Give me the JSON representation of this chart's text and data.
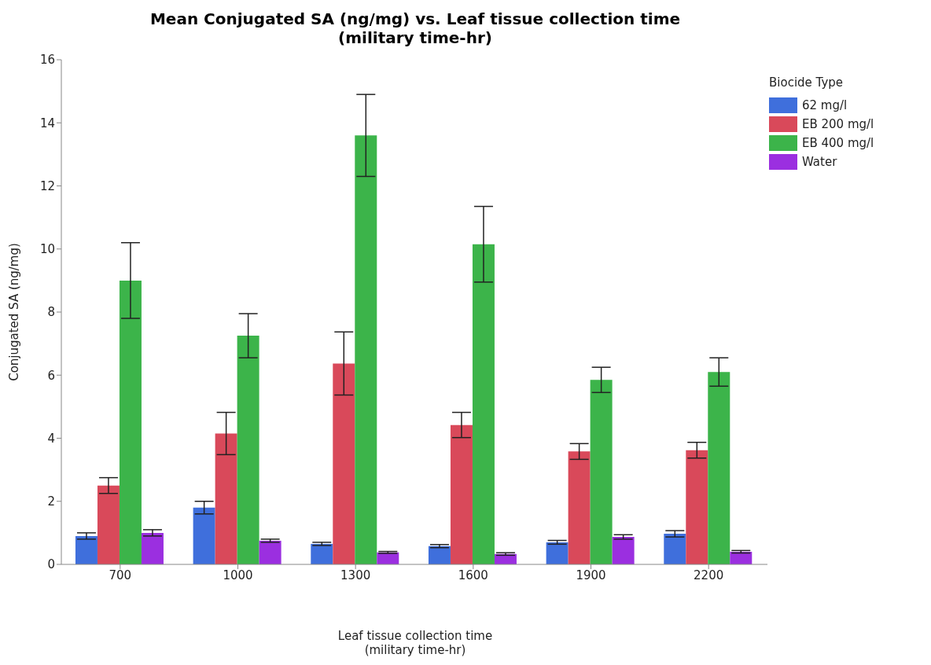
{
  "chart_data": {
    "type": "bar",
    "title": "Mean Conjugated SA (ng/mg) vs. Leaf tissue collection time\n(military time-hr)",
    "xlabel": "Leaf tissue collection time\n(military time-hr)",
    "ylabel": "Conjugated SA (ng/mg)",
    "legend_title": "Biocide Type",
    "legend": "top right",
    "grid": false,
    "categories": [
      "700",
      "1000",
      "1300",
      "1600",
      "1900",
      "2200"
    ],
    "series": [
      {
        "name": "62 mg/l",
        "color": "#3f6fdc",
        "values": [
          0.9,
          1.8,
          0.65,
          0.58,
          0.7,
          0.97
        ],
        "errors": [
          0.1,
          0.2,
          0.05,
          0.05,
          0.06,
          0.1
        ]
      },
      {
        "name": "EB 200 mg/l",
        "color": "#d9495a",
        "values": [
          2.5,
          4.15,
          6.37,
          4.42,
          3.58,
          3.62
        ],
        "errors": [
          0.25,
          0.67,
          1.0,
          0.4,
          0.25,
          0.25
        ]
      },
      {
        "name": "EB 400 mg/l",
        "color": "#3cb44a",
        "values": [
          9.0,
          7.25,
          13.6,
          10.15,
          5.85,
          6.1
        ],
        "errors": [
          1.2,
          0.7,
          1.3,
          1.2,
          0.4,
          0.45
        ]
      },
      {
        "name": "Water",
        "color": "#9b2fe0",
        "values": [
          1.0,
          0.75,
          0.38,
          0.33,
          0.87,
          0.4
        ],
        "errors": [
          0.1,
          0.05,
          0.03,
          0.04,
          0.07,
          0.04
        ]
      }
    ],
    "ylim": [
      0,
      16
    ],
    "yticks": [
      0,
      2,
      4,
      6,
      8,
      10,
      12,
      14,
      16
    ]
  }
}
